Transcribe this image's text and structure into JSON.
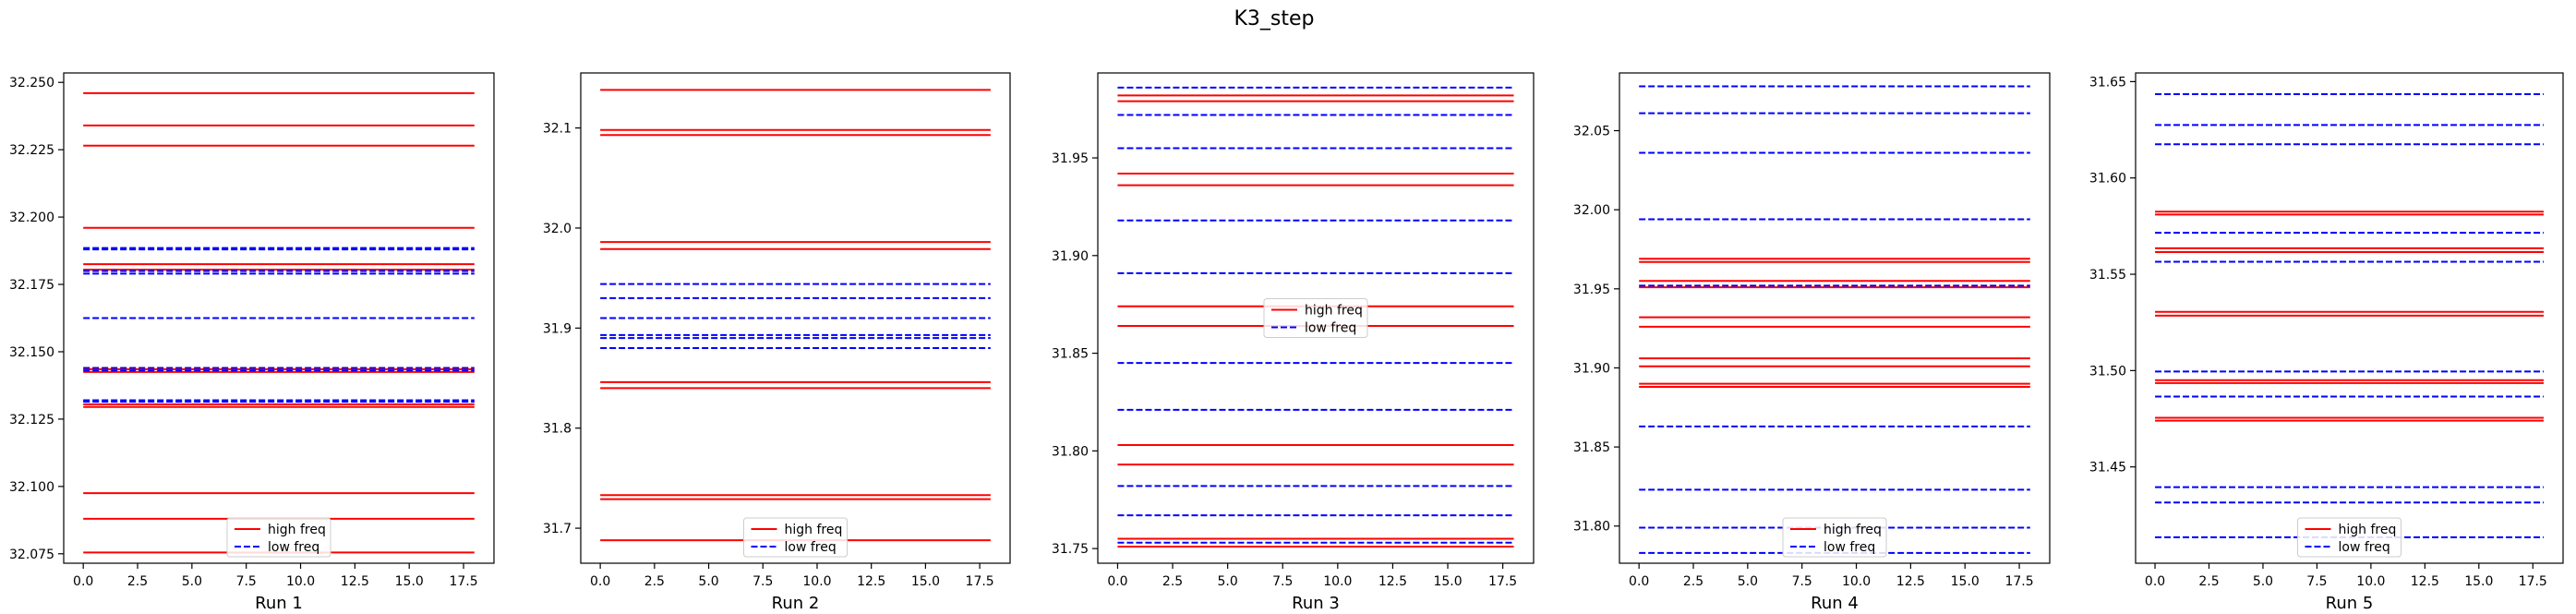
{
  "figure": {
    "title": "K3_step"
  },
  "colors": {
    "high": "#ff0000",
    "low": "#0000ff"
  },
  "chart_data": [
    {
      "type": "line",
      "xlabel": "Run 1",
      "xlim": [
        -0.9,
        18.9
      ],
      "ylim": [
        32.0715,
        32.2535
      ],
      "xticks": [
        0.0,
        2.5,
        5.0,
        7.5,
        10.0,
        12.5,
        15.0,
        17.5
      ],
      "xtick_labels": [
        "0.0",
        "2.5",
        "5.0",
        "7.5",
        "10.0",
        "12.5",
        "15.0",
        "17.5"
      ],
      "yticks": [
        32.075,
        32.1,
        32.125,
        32.15,
        32.175,
        32.2,
        32.225,
        32.25
      ],
      "ytick_labels": [
        "32.075",
        "32.100",
        "32.125",
        "32.150",
        "32.175",
        "32.200",
        "32.225",
        "32.250"
      ],
      "x_range": [
        0,
        18
      ],
      "legend": {
        "position": "lower-center",
        "high_label": "high freq",
        "low_label": "low freq"
      },
      "high_freq": [
        32.246,
        32.234,
        32.2265,
        32.196,
        32.1825,
        32.1805,
        32.1435,
        32.1425,
        32.1305,
        32.1295,
        32.0975,
        32.088,
        32.0755
      ],
      "low_freq": [
        32.1885,
        32.188,
        32.18,
        32.179,
        32.1625,
        32.144,
        32.143,
        32.132,
        32.1315
      ]
    },
    {
      "type": "line",
      "xlabel": "Run 2",
      "xlim": [
        -0.9,
        18.9
      ],
      "ylim": [
        31.665,
        32.155
      ],
      "xticks": [
        0.0,
        2.5,
        5.0,
        7.5,
        10.0,
        12.5,
        15.0,
        17.5
      ],
      "xtick_labels": [
        "0.0",
        "2.5",
        "5.0",
        "7.5",
        "10.0",
        "12.5",
        "15.0",
        "17.5"
      ],
      "yticks": [
        31.7,
        31.8,
        31.9,
        32.0,
        32.1
      ],
      "ytick_labels": [
        "31.7",
        "31.8",
        "31.9",
        "32.0",
        "32.1"
      ],
      "x_range": [
        0,
        18
      ],
      "legend": {
        "position": "lower-center",
        "high_label": "high freq",
        "low_label": "low freq"
      },
      "high_freq": [
        32.138,
        32.098,
        32.093,
        31.986,
        31.979,
        31.846,
        31.84,
        31.733,
        31.729,
        31.688
      ],
      "low_freq": [
        31.944,
        31.93,
        31.91,
        31.893,
        31.89,
        31.88
      ]
    },
    {
      "type": "line",
      "xlabel": "Run 3",
      "xlim": [
        -0.9,
        18.9
      ],
      "ylim": [
        31.7425,
        31.9935
      ],
      "xticks": [
        0.0,
        2.5,
        5.0,
        7.5,
        10.0,
        12.5,
        15.0,
        17.5
      ],
      "xtick_labels": [
        "0.0",
        "2.5",
        "5.0",
        "7.5",
        "10.0",
        "12.5",
        "15.0",
        "17.5"
      ],
      "yticks": [
        31.75,
        31.8,
        31.85,
        31.9,
        31.95
      ],
      "ytick_labels": [
        "31.75",
        "31.80",
        "31.85",
        "31.90",
        "31.95"
      ],
      "x_range": [
        0,
        18
      ],
      "legend": {
        "position": "center",
        "high_label": "high freq",
        "low_label": "low freq"
      },
      "high_freq": [
        31.982,
        31.979,
        31.942,
        31.936,
        31.874,
        31.864,
        31.803,
        31.793,
        31.755,
        31.751
      ],
      "low_freq": [
        31.986,
        31.972,
        31.955,
        31.918,
        31.891,
        31.845,
        31.821,
        31.782,
        31.767,
        31.753
      ]
    },
    {
      "type": "line",
      "xlabel": "Run 4",
      "xlim": [
        -0.9,
        18.9
      ],
      "ylim": [
        31.7765,
        32.0865
      ],
      "xticks": [
        0.0,
        2.5,
        5.0,
        7.5,
        10.0,
        12.5,
        15.0,
        17.5
      ],
      "xtick_labels": [
        "0.0",
        "2.5",
        "5.0",
        "7.5",
        "10.0",
        "12.5",
        "15.0",
        "17.5"
      ],
      "yticks": [
        31.8,
        31.85,
        31.9,
        31.95,
        32.0,
        32.05
      ],
      "ytick_labels": [
        "31.80",
        "31.85",
        "31.90",
        "31.95",
        "32.00",
        "32.05"
      ],
      "x_range": [
        0,
        18
      ],
      "legend": {
        "position": "lower-center",
        "high_label": "high freq",
        "low_label": "low freq"
      },
      "high_freq": [
        31.969,
        31.967,
        31.955,
        31.951,
        31.932,
        31.926,
        31.906,
        31.901,
        31.89,
        31.888
      ],
      "low_freq": [
        32.078,
        32.061,
        32.036,
        31.994,
        31.952,
        31.863,
        31.823,
        31.799,
        31.783
      ]
    },
    {
      "type": "line",
      "xlabel": "Run 5",
      "xlim": [
        -0.9,
        18.9
      ],
      "ylim": [
        31.4,
        31.6545
      ],
      "xticks": [
        0.0,
        2.5,
        5.0,
        7.5,
        10.0,
        12.5,
        15.0,
        17.5
      ],
      "xtick_labels": [
        "0.0",
        "2.5",
        "5.0",
        "7.5",
        "10.0",
        "12.5",
        "15.0",
        "17.5"
      ],
      "yticks": [
        31.45,
        31.5,
        31.55,
        31.6,
        31.65
      ],
      "ytick_labels": [
        "31.45",
        "31.50",
        "31.55",
        "31.60",
        "31.65"
      ],
      "x_range": [
        0,
        18
      ],
      "legend": {
        "position": "lower-center",
        "high_label": "high freq",
        "low_label": "low freq"
      },
      "high_freq": [
        31.5825,
        31.581,
        31.5635,
        31.5615,
        31.5305,
        31.5285,
        31.495,
        31.4935,
        31.4755,
        31.474
      ],
      "low_freq": [
        31.6435,
        31.6275,
        31.6175,
        31.5715,
        31.5565,
        31.4995,
        31.4865,
        31.4395,
        31.4315,
        31.4135
      ]
    }
  ]
}
